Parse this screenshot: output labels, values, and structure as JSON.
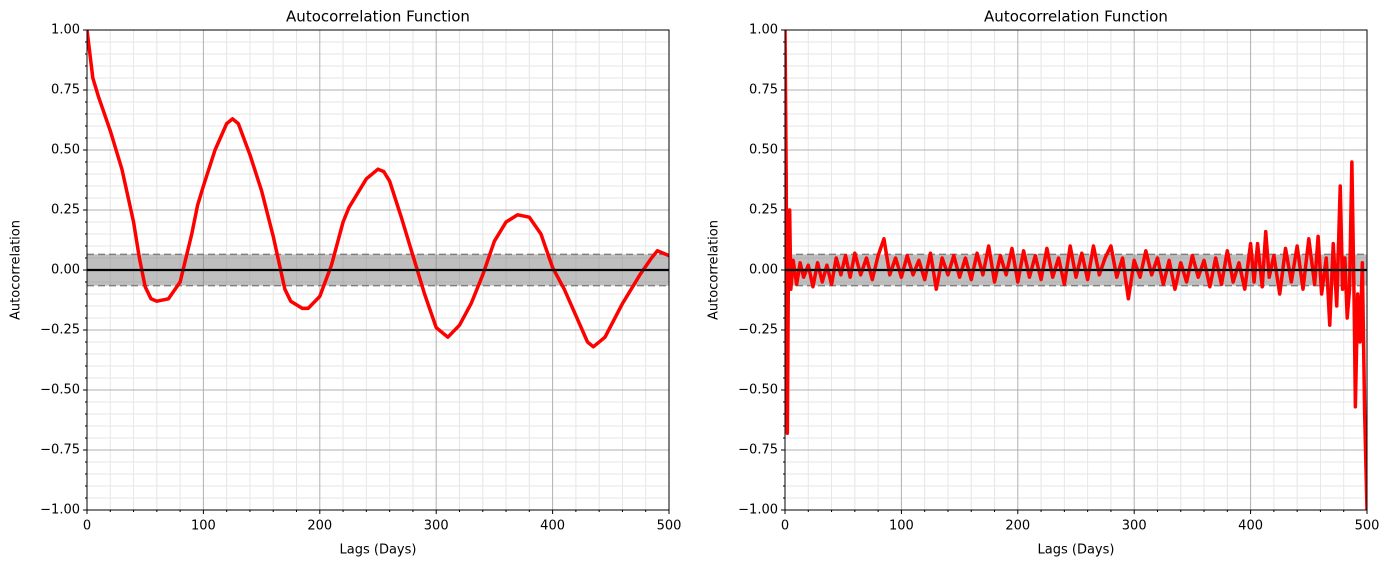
{
  "chart_data": [
    {
      "type": "line",
      "title": "Autocorrelation Function",
      "xlabel": "Lags (Days)",
      "ylabel": "Autocorrelation",
      "xlim": [
        0,
        500
      ],
      "ylim": [
        -1,
        1
      ],
      "xticks": [
        0,
        100,
        200,
        300,
        400,
        500
      ],
      "yticks": [
        {
          "value": -1,
          "label": "−1.00"
        },
        {
          "value": -0.75,
          "label": "−0.75"
        },
        {
          "value": -0.5,
          "label": "−0.50"
        },
        {
          "value": -0.25,
          "label": "−0.25"
        },
        {
          "value": 0,
          "label": "0.00"
        },
        {
          "value": 0.25,
          "label": "0.25"
        },
        {
          "value": 0.5,
          "label": "0.50"
        },
        {
          "value": 0.75,
          "label": "0.75"
        },
        {
          "value": 1,
          "label": "1.00"
        }
      ],
      "grid": true,
      "minor_divisions": 5,
      "confidence_band": [
        -0.065,
        0.065
      ],
      "reference_line": 0,
      "x": [
        0,
        5,
        10,
        20,
        30,
        40,
        45,
        50,
        55,
        60,
        70,
        80,
        85,
        90,
        95,
        100,
        110,
        120,
        125,
        130,
        140,
        150,
        160,
        165,
        170,
        175,
        185,
        190,
        200,
        210,
        220,
        225,
        230,
        240,
        250,
        255,
        260,
        270,
        280,
        290,
        300,
        310,
        320,
        330,
        340,
        350,
        360,
        370,
        380,
        390,
        400,
        410,
        420,
        430,
        435,
        445,
        460,
        475,
        485,
        490,
        500
      ],
      "series": [
        {
          "color": "#ff0000",
          "values": [
            1.0,
            0.8,
            0.72,
            0.58,
            0.42,
            0.2,
            0.05,
            -0.07,
            -0.12,
            -0.13,
            -0.12,
            -0.05,
            0.05,
            0.15,
            0.27,
            0.35,
            0.5,
            0.61,
            0.63,
            0.61,
            0.48,
            0.33,
            0.14,
            0.03,
            -0.08,
            -0.13,
            -0.16,
            -0.16,
            -0.11,
            0.02,
            0.2,
            0.26,
            0.3,
            0.38,
            0.42,
            0.41,
            0.37,
            0.22,
            0.06,
            -0.1,
            -0.24,
            -0.28,
            -0.23,
            -0.14,
            -0.02,
            0.12,
            0.2,
            0.23,
            0.22,
            0.15,
            0.01,
            -0.08,
            -0.19,
            -0.3,
            -0.32,
            -0.28,
            -0.14,
            -0.02,
            0.05,
            0.08,
            0.06
          ]
        }
      ]
    },
    {
      "type": "line",
      "title": "Autocorrelation Function",
      "xlabel": "Lags (Days)",
      "ylabel": "Autocorrelation",
      "xlim": [
        0,
        500
      ],
      "ylim": [
        -1,
        1
      ],
      "xticks": [
        0,
        100,
        200,
        300,
        400,
        500
      ],
      "yticks": [
        {
          "value": -1,
          "label": "−1.00"
        },
        {
          "value": -0.75,
          "label": "−0.75"
        },
        {
          "value": -0.5,
          "label": "−0.50"
        },
        {
          "value": -0.25,
          "label": "−0.25"
        },
        {
          "value": 0,
          "label": "0.00"
        },
        {
          "value": 0.25,
          "label": "0.25"
        },
        {
          "value": 0.5,
          "label": "0.50"
        },
        {
          "value": 0.75,
          "label": "0.75"
        },
        {
          "value": 1,
          "label": "1.00"
        }
      ],
      "grid": true,
      "minor_divisions": 5,
      "confidence_band": [
        -0.065,
        0.065
      ],
      "reference_line": 0,
      "x": [
        0,
        1,
        2,
        3,
        4,
        5,
        7,
        10,
        13,
        16,
        20,
        24,
        28,
        32,
        36,
        40,
        44,
        48,
        52,
        56,
        60,
        65,
        70,
        75,
        80,
        85,
        90,
        95,
        100,
        105,
        110,
        115,
        120,
        125,
        130,
        135,
        140,
        145,
        150,
        155,
        160,
        165,
        170,
        175,
        180,
        185,
        190,
        195,
        200,
        205,
        210,
        215,
        220,
        225,
        230,
        235,
        240,
        245,
        250,
        255,
        260,
        265,
        270,
        275,
        280,
        285,
        290,
        295,
        300,
        305,
        310,
        315,
        320,
        325,
        330,
        335,
        340,
        345,
        350,
        355,
        360,
        365,
        370,
        375,
        380,
        385,
        390,
        395,
        400,
        403,
        406,
        410,
        413,
        416,
        420,
        425,
        430,
        435,
        440,
        445,
        450,
        455,
        458,
        461,
        465,
        468,
        471,
        474,
        477,
        479,
        481,
        483,
        485,
        487,
        489,
        490,
        492,
        494,
        496,
        498,
        500
      ],
      "series": [
        {
          "color": "#ff0000",
          "values": [
            1,
            0.4,
            -0.68,
            0.05,
            0.25,
            -0.08,
            0.04,
            -0.06,
            0.03,
            -0.03,
            0.02,
            -0.07,
            0.03,
            -0.05,
            0.02,
            -0.06,
            0.05,
            -0.02,
            0.06,
            -0.03,
            0.07,
            -0.02,
            0.05,
            -0.04,
            0.06,
            0.13,
            -0.02,
            0.05,
            -0.03,
            0.06,
            -0.02,
            0.04,
            -0.04,
            0.07,
            -0.08,
            0.05,
            -0.02,
            0.06,
            -0.03,
            0.05,
            -0.04,
            0.07,
            -0.02,
            0.1,
            -0.05,
            0.06,
            -0.02,
            0.09,
            -0.05,
            0.08,
            -0.03,
            0.06,
            -0.04,
            0.09,
            -0.03,
            0.05,
            -0.06,
            0.1,
            -0.03,
            0.07,
            -0.04,
            0.1,
            -0.02,
            0.05,
            0.1,
            -0.03,
            0.05,
            -0.12,
            0.04,
            -0.03,
            0.08,
            -0.02,
            0.05,
            -0.06,
            0.04,
            -0.08,
            0.03,
            -0.05,
            0.06,
            -0.03,
            0.04,
            -0.07,
            0.05,
            -0.06,
            0.08,
            -0.05,
            0.03,
            -0.08,
            0.11,
            -0.05,
            0.11,
            -0.07,
            0.16,
            -0.03,
            0.06,
            -0.1,
            0.09,
            -0.05,
            0.1,
            -0.08,
            0.13,
            -0.06,
            0.14,
            -0.1,
            0.05,
            -0.23,
            0.11,
            -0.15,
            0.35,
            -0.08,
            0.05,
            -0.2,
            -0.08,
            0.45,
            -0.15,
            -0.57,
            -0.1,
            -0.3,
            0.03,
            -0.6,
            -1.0
          ]
        }
      ]
    }
  ]
}
